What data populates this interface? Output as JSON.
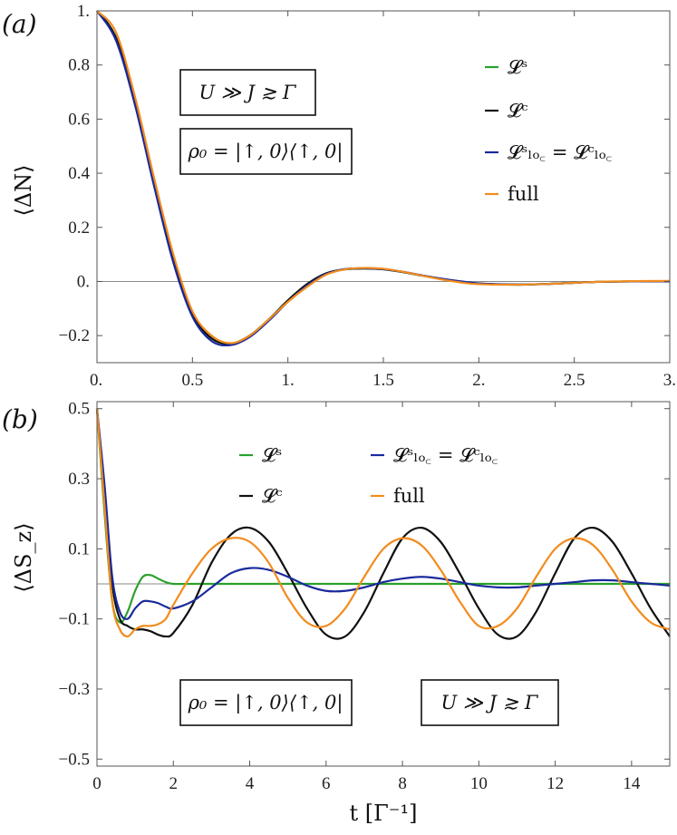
{
  "chart_data": [
    {
      "type": "line",
      "panel_label": "(a)",
      "ylabel": "⟨ΔN⟩",
      "xlabel": "",
      "xlim": [
        0,
        3
      ],
      "ylim": [
        -0.3,
        1.0
      ],
      "xticks": [
        "0.",
        "0.5",
        "1.",
        "1.5",
        "2.",
        "2.5",
        "3."
      ],
      "xtick_values": [
        0,
        0.5,
        1,
        1.5,
        2,
        2.5,
        3
      ],
      "yticks": [
        "1.",
        "0.8",
        "0.6",
        "0.4",
        "0.2",
        "0.",
        "−0.2"
      ],
      "ytick_values": [
        1.0,
        0.8,
        0.6,
        0.4,
        0.2,
        0.0,
        -0.2
      ],
      "legend": [
        "𝓛ˢ",
        "𝓛ᶜ",
        "𝓛ˢₗₒ꜀ = 𝓛ᶜₗₒ꜀",
        "full"
      ],
      "legend_placement": "top-right",
      "annotations": [
        "U ≫ J ≳ Γ",
        "ρ₀ = |↑, 0⟩⟨↑, 0|"
      ],
      "x": [
        0,
        0.1,
        0.2,
        0.3,
        0.4,
        0.5,
        0.6,
        0.7,
        0.8,
        0.9,
        1.0,
        1.1,
        1.2,
        1.3,
        1.4,
        1.5,
        1.6,
        1.7,
        1.8,
        1.9,
        2.0,
        2.2,
        2.4,
        2.6,
        2.8,
        3.0
      ],
      "series": [
        {
          "color": "#2ca02c",
          "values": [
            1.0,
            0.9,
            0.66,
            0.36,
            0.08,
            -0.12,
            -0.21,
            -0.23,
            -0.2,
            -0.14,
            -0.07,
            -0.01,
            0.03,
            0.045,
            0.048,
            0.045,
            0.035,
            0.022,
            0.01,
            0.0,
            -0.008,
            -0.012,
            -0.008,
            -0.002,
            0.0,
            0.0
          ]
        },
        {
          "color": "#111111",
          "values": [
            1.0,
            0.9,
            0.66,
            0.36,
            0.08,
            -0.12,
            -0.21,
            -0.23,
            -0.2,
            -0.14,
            -0.07,
            -0.01,
            0.03,
            0.045,
            0.048,
            0.045,
            0.035,
            0.022,
            0.01,
            0.0,
            -0.008,
            -0.012,
            -0.008,
            -0.002,
            0.0,
            0.0
          ]
        },
        {
          "color": "#1a2a9c",
          "values": [
            1.0,
            0.89,
            0.65,
            0.35,
            0.07,
            -0.13,
            -0.22,
            -0.235,
            -0.205,
            -0.145,
            -0.075,
            -0.015,
            0.028,
            0.046,
            0.049,
            0.046,
            0.036,
            0.023,
            0.011,
            0.001,
            -0.007,
            -0.011,
            -0.008,
            -0.002,
            0.0,
            0.0
          ]
        },
        {
          "color": "#f28c1e",
          "values": [
            1.0,
            0.92,
            0.68,
            0.38,
            0.1,
            -0.11,
            -0.2,
            -0.228,
            -0.2,
            -0.14,
            -0.075,
            -0.02,
            0.025,
            0.045,
            0.05,
            0.047,
            0.036,
            0.022,
            0.008,
            -0.003,
            -0.01,
            -0.012,
            -0.008,
            -0.002,
            0.001,
            0.002
          ]
        }
      ]
    },
    {
      "type": "line",
      "panel_label": "(b)",
      "ylabel": "⟨ΔS_z⟩",
      "xlabel": "t [Γ⁻¹]",
      "xlim": [
        0,
        15
      ],
      "ylim": [
        -0.52,
        0.52
      ],
      "xticks": [
        "0",
        "2",
        "4",
        "6",
        "8",
        "10",
        "12",
        "14"
      ],
      "xtick_values": [
        0,
        2,
        4,
        6,
        8,
        10,
        12,
        14
      ],
      "yticks": [
        "0.5",
        "0.3",
        "0.1",
        "−0.1",
        "−0.3",
        "−0.5"
      ],
      "ytick_values": [
        0.5,
        0.3,
        0.1,
        -0.1,
        -0.3,
        -0.5
      ],
      "legend": [
        "𝓛ˢ",
        "𝓛ᶜ",
        "𝓛ˢₗₒ꜀ = 𝓛ᶜₗₒ꜀",
        "full"
      ],
      "legend_placement": "top-center",
      "annotations": [
        "ρ₀ = |↑, 0⟩⟨↑, 0|",
        "U ≫ J ≳ Γ"
      ],
      "x": [
        0,
        0.2,
        0.4,
        0.6,
        0.8,
        1.0,
        1.2,
        1.4,
        1.6,
        1.8,
        2.0,
        2.5,
        3.0,
        3.5,
        4.0,
        4.5,
        5.0,
        5.5,
        6.0,
        6.5,
        7.0,
        7.5,
        8.0,
        8.5,
        9.0,
        9.5,
        10.0,
        10.5,
        11.0,
        11.5,
        12.0,
        12.5,
        13.0,
        13.5,
        14.0,
        14.5,
        15.0
      ],
      "series": [
        {
          "color": "#2ca02c",
          "values": [
            0.5,
            0.2,
            -0.05,
            -0.11,
            -0.08,
            -0.02,
            0.02,
            0.025,
            0.015,
            0.005,
            0.0,
            0.0,
            0.0,
            0.0,
            0.0,
            0.0,
            0.0,
            0.0,
            0.0,
            0.0,
            0.0,
            0.0,
            0.0,
            0.0,
            0.0,
            0.0,
            0.0,
            0.0,
            0.0,
            0.0,
            0.0,
            0.0,
            0.0,
            0.0,
            0.0,
            0.0,
            0.0
          ]
        },
        {
          "color": "#111111",
          "values": [
            0.5,
            0.26,
            0.0,
            -0.1,
            -0.12,
            -0.13,
            -0.13,
            -0.135,
            -0.145,
            -0.15,
            -0.14,
            -0.06,
            0.06,
            0.14,
            0.16,
            0.12,
            0.03,
            -0.07,
            -0.145,
            -0.15,
            -0.08,
            0.03,
            0.13,
            0.16,
            0.12,
            0.03,
            -0.07,
            -0.145,
            -0.15,
            -0.08,
            0.03,
            0.13,
            0.16,
            0.12,
            0.03,
            -0.07,
            -0.15
          ]
        },
        {
          "color": "#1a2a9c",
          "values": [
            0.5,
            0.28,
            0.02,
            -0.08,
            -0.1,
            -0.07,
            -0.05,
            -0.05,
            -0.055,
            -0.065,
            -0.07,
            -0.05,
            -0.01,
            0.03,
            0.045,
            0.04,
            0.02,
            -0.005,
            -0.02,
            -0.02,
            -0.01,
            0.005,
            0.015,
            0.02,
            0.015,
            0.005,
            -0.005,
            -0.01,
            -0.01,
            -0.005,
            0.0,
            0.005,
            0.01,
            0.01,
            0.005,
            0.0,
            -0.005
          ]
        },
        {
          "color": "#f28c1e",
          "values": [
            0.5,
            0.22,
            -0.05,
            -0.13,
            -0.15,
            -0.13,
            -0.12,
            -0.12,
            -0.115,
            -0.1,
            -0.06,
            0.03,
            0.1,
            0.13,
            0.12,
            0.06,
            -0.04,
            -0.11,
            -0.12,
            -0.07,
            0.02,
            0.1,
            0.13,
            0.11,
            0.04,
            -0.05,
            -0.12,
            -0.12,
            -0.07,
            0.02,
            0.1,
            0.13,
            0.11,
            0.04,
            -0.05,
            -0.11,
            -0.13
          ]
        }
      ]
    }
  ]
}
